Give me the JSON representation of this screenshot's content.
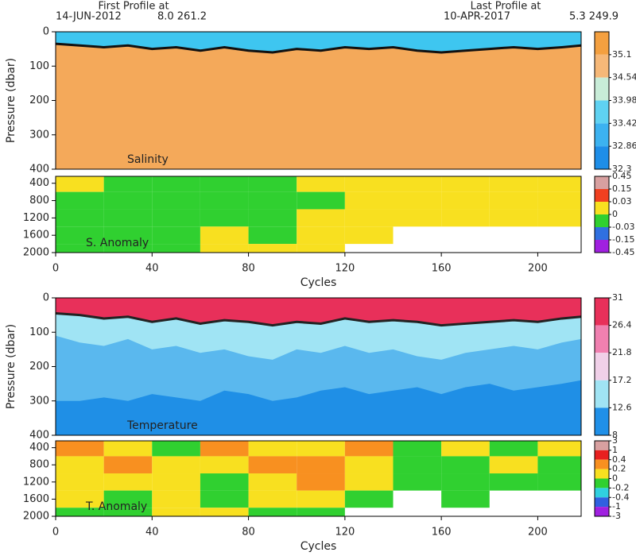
{
  "header": {
    "first_title": "First Profile at",
    "first_date": "14-JUN-2012",
    "first_pos": "8.0 261.2",
    "last_title": "Last Profile at",
    "last_date": "10-APR-2017",
    "last_pos": "5.3 249.9"
  },
  "chart_data": [
    {
      "type": "layers",
      "label": "Salinity",
      "ylabel": "Pressure (dbar)",
      "xlim": [
        0,
        218
      ],
      "ylim": [
        0,
        400
      ],
      "y_inverted": true,
      "yticks": [
        0,
        100,
        200,
        300,
        400
      ],
      "base_color": "#f4a95a",
      "x": [
        0,
        10,
        20,
        30,
        40,
        50,
        60,
        70,
        80,
        90,
        100,
        110,
        120,
        130,
        140,
        150,
        160,
        170,
        180,
        190,
        200,
        210,
        218
      ],
      "boundaries": [
        {
          "color": "#3ec6f0",
          "stroke": "#111111",
          "values": [
            35,
            40,
            45,
            40,
            50,
            45,
            55,
            45,
            55,
            60,
            50,
            55,
            45,
            50,
            45,
            55,
            60,
            55,
            50,
            45,
            50,
            45,
            40
          ]
        }
      ],
      "colorbar": {
        "ticks": [
          35.1,
          34.54,
          33.98,
          33.42,
          32.86,
          32.3
        ],
        "colors": [
          "#f4a040",
          "#f6b878",
          "#c8ecd8",
          "#5fd2f2",
          "#3cb2f0",
          "#1e8ee8"
        ]
      }
    },
    {
      "type": "heatmap",
      "label": "S. Anomaly",
      "xlabel": "Cycles",
      "xlim": [
        0,
        218
      ],
      "xticks": [
        0,
        40,
        80,
        120,
        160,
        200
      ],
      "ylim": [
        240,
        2000
      ],
      "y_inverted": true,
      "yticks": [
        400,
        800,
        1200,
        1600,
        2000
      ],
      "xbins": [
        0,
        20,
        40,
        60,
        80,
        100,
        120,
        140,
        160,
        180,
        200,
        218
      ],
      "ybins": [
        240,
        600,
        1000,
        1400,
        1800,
        2000
      ],
      "z": [
        [
          0.02,
          -0.01,
          -0.01,
          -0.01,
          -0.01,
          0.01,
          0.02,
          0.01,
          0.01,
          0.01,
          0.01
        ],
        [
          -0.01,
          -0.01,
          -0.01,
          -0.01,
          -0.01,
          -0.01,
          0.01,
          0.01,
          0.01,
          0.01,
          0.01
        ],
        [
          -0.01,
          -0.01,
          -0.01,
          -0.01,
          -0.01,
          0.01,
          0.01,
          0.01,
          0.01,
          0.01,
          0.01
        ],
        [
          -0.01,
          -0.01,
          -0.01,
          0.01,
          -0.01,
          0.01,
          0.01,
          null,
          null,
          null,
          null
        ],
        [
          -0.01,
          -0.01,
          -0.01,
          0.01,
          0.01,
          0.01,
          null,
          null,
          null,
          null,
          null
        ]
      ],
      "colorbar": {
        "ticks": [
          0.45,
          0.15,
          0.03,
          0,
          -0.03,
          -0.15,
          -0.45
        ],
        "colors": [
          "#d8a0a0",
          "#f04020",
          "#f8e020",
          "#30d030",
          "#3070e0",
          "#a020e0"
        ]
      }
    },
    {
      "type": "layers",
      "label": "Temperature",
      "ylabel": "Pressure (dbar)",
      "xlim": [
        0,
        218
      ],
      "ylim": [
        0,
        400
      ],
      "y_inverted": true,
      "yticks": [
        0,
        100,
        200,
        300,
        400
      ],
      "base_color": "#1f8fe6",
      "x": [
        0,
        10,
        20,
        30,
        40,
        50,
        60,
        70,
        80,
        90,
        100,
        110,
        120,
        130,
        140,
        150,
        160,
        170,
        180,
        190,
        200,
        210,
        218
      ],
      "boundaries": [
        {
          "color": "#5ab8ee",
          "values": [
            300,
            300,
            290,
            300,
            280,
            290,
            300,
            270,
            280,
            300,
            290,
            270,
            260,
            280,
            270,
            260,
            280,
            260,
            250,
            270,
            260,
            250,
            240
          ]
        },
        {
          "color": "#a0e4f4",
          "values": [
            110,
            130,
            140,
            120,
            150,
            140,
            160,
            150,
            170,
            180,
            150,
            160,
            140,
            160,
            150,
            170,
            180,
            160,
            150,
            140,
            150,
            130,
            120
          ]
        },
        {
          "color": "#e8305a",
          "stroke": "#222222",
          "values": [
            45,
            50,
            60,
            55,
            70,
            60,
            75,
            65,
            70,
            80,
            70,
            75,
            60,
            70,
            65,
            70,
            80,
            75,
            70,
            65,
            70,
            60,
            55
          ]
        }
      ],
      "colorbar": {
        "ticks": [
          31,
          26.4,
          21.8,
          17.2,
          12.6,
          8
        ],
        "colors": [
          "#e8305a",
          "#f080b0",
          "#f0d0e8",
          "#a0e4f4",
          "#2090e8"
        ]
      }
    },
    {
      "type": "heatmap",
      "label": "T. Anomaly",
      "xlabel": "Cycles",
      "xlim": [
        0,
        218
      ],
      "xticks": [
        0,
        40,
        80,
        120,
        160,
        200
      ],
      "ylim": [
        240,
        2000
      ],
      "y_inverted": true,
      "yticks": [
        400,
        800,
        1200,
        1600,
        2000
      ],
      "xbins": [
        0,
        20,
        40,
        60,
        80,
        100,
        120,
        140,
        160,
        180,
        200,
        218
      ],
      "ybins": [
        240,
        600,
        1000,
        1400,
        1800,
        2000
      ],
      "z": [
        [
          0.3,
          0.1,
          -0.1,
          0.3,
          0.1,
          0.1,
          0.3,
          -0.1,
          0.1,
          -0.1,
          0.1
        ],
        [
          0.1,
          0.3,
          0.1,
          0.1,
          0.3,
          0.3,
          0.1,
          -0.1,
          -0.1,
          0.1,
          -0.1
        ],
        [
          0.1,
          0.1,
          0.1,
          -0.1,
          0.1,
          0.3,
          0.1,
          -0.1,
          -0.1,
          -0.1,
          -0.1
        ],
        [
          0.1,
          -0.1,
          0.1,
          -0.1,
          0.1,
          0.1,
          -0.1,
          null,
          -0.1,
          null,
          null
        ],
        [
          -0.1,
          -0.1,
          0.1,
          0.1,
          -0.1,
          -0.1,
          null,
          null,
          null,
          null,
          null
        ]
      ],
      "colorbar": {
        "ticks": [
          3,
          1,
          0.4,
          0.2,
          0,
          -0.2,
          -0.4,
          -1,
          -3
        ],
        "colors": [
          "#d8a0a0",
          "#e82020",
          "#f89020",
          "#f8e020",
          "#30d030",
          "#30d0e0",
          "#3060e0",
          "#a020e0"
        ]
      }
    }
  ]
}
